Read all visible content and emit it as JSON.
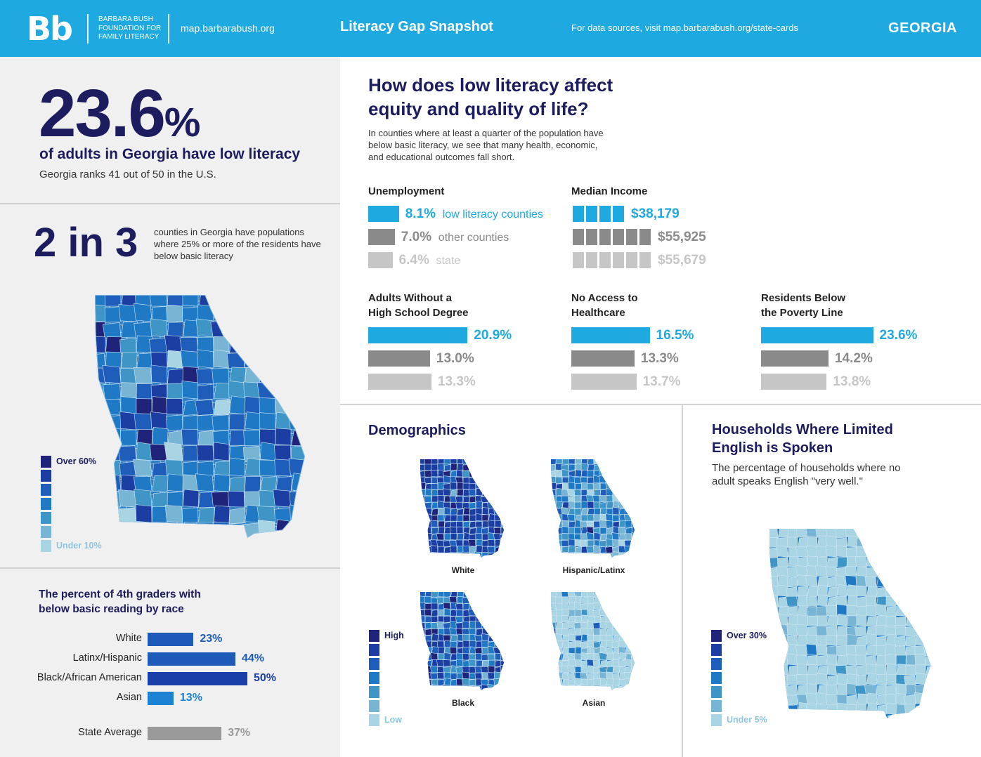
{
  "header": {
    "logo": "Bb",
    "org_lines": [
      "BARBARA BUSH",
      "FOUNDATION for",
      "FAMILY LITERACY"
    ],
    "site": "map.barbarabush.org",
    "title": "Literacy Gap Snapshot",
    "sources": "For data sources, visit map.barbarabush.org/state-cards",
    "state": "GEORGIA"
  },
  "hero": {
    "value": "23.6",
    "unit": "%",
    "subtitle": "of adults in Georgia have low literacy",
    "rank": "Georgia ranks 41 out of 50 in the U.S."
  },
  "counties": {
    "value": "2 in 3",
    "description": "counties in Georgia have populations where 25% or more of the residents have below basic literacy"
  },
  "map_legend": {
    "high": "Over 60%",
    "low": "Under 10%"
  },
  "race_chart": {
    "title_lines": [
      "The percent of 4th graders with",
      "below basic reading by race"
    ],
    "rows": [
      {
        "label": "White",
        "value": 23,
        "text": "23%",
        "color": "#1e5bb8"
      },
      {
        "label": "Latinx/Hispanic",
        "value": 44,
        "text": "44%",
        "color": "#1e5bb8"
      },
      {
        "label": "Black/African American",
        "value": 50,
        "text": "50%",
        "color": "#1b3fa8"
      },
      {
        "label": "Asian",
        "value": 13,
        "text": "13%",
        "color": "#1e82d2"
      }
    ],
    "average": {
      "label": "State Average",
      "value": 37,
      "text": "37%",
      "color": "#9a9a9a"
    }
  },
  "equity": {
    "title_lines": [
      "How does low literacy affect",
      "equity and quality of life?"
    ],
    "description": "In counties where at least a quarter of the population have below basic literacy, we see that many health, economic, and educational outcomes fall short.",
    "unemployment": {
      "title": "Unemployment",
      "rows": [
        {
          "value": 8.1,
          "text": "8.1%",
          "desc": "low literacy counties"
        },
        {
          "value": 7.0,
          "text": "7.0%",
          "desc": "other counties"
        },
        {
          "value": 6.4,
          "text": "6.4%",
          "desc": "state"
        }
      ]
    },
    "income": {
      "title": "Median Income",
      "rows": [
        {
          "value": 38179,
          "text": "$38,179",
          "blocks": 4
        },
        {
          "value": 55925,
          "text": "$55,925",
          "blocks": 6
        },
        {
          "value": 55679,
          "text": "$55,679",
          "blocks": 6
        }
      ]
    },
    "metrics": [
      {
        "title_lines": [
          "Adults Without a",
          "High School Degree"
        ],
        "rows": [
          {
            "value": 20.9,
            "text": "20.9%"
          },
          {
            "value": 13.0,
            "text": "13.0%"
          },
          {
            "value": 13.3,
            "text": "13.3%"
          }
        ]
      },
      {
        "title_lines": [
          "No Access to",
          "Healthcare"
        ],
        "rows": [
          {
            "value": 16.5,
            "text": "16.5%"
          },
          {
            "value": 13.3,
            "text": "13.3%"
          },
          {
            "value": 13.7,
            "text": "13.7%"
          }
        ]
      },
      {
        "title_lines": [
          "Residents Below",
          "the Poverty Line"
        ],
        "rows": [
          {
            "value": 23.6,
            "text": "23.6%"
          },
          {
            "value": 14.2,
            "text": "14.2%"
          },
          {
            "value": 13.8,
            "text": "13.8%"
          }
        ]
      }
    ]
  },
  "demographics": {
    "title": "Demographics",
    "maps": [
      "White",
      "Hispanic/Latinx",
      "Black",
      "Asian"
    ],
    "legend": {
      "high": "High",
      "low": "Low"
    }
  },
  "households": {
    "title_lines": [
      "Households Where Limited",
      "English is Spoken"
    ],
    "description": "The percentage of households where no adult speaks English \"very well.\"",
    "legend": {
      "high": "Over 30%",
      "low": "Under 5%"
    }
  },
  "colors": {
    "header": "#1fa9e1",
    "navy": "#1c1c5e",
    "highlight": "#1fa9e1",
    "other": "#8a8a8a",
    "state": "#c6c6c6",
    "scale": [
      "#1f237a",
      "#1c3ea3",
      "#1f5dbb",
      "#2079c4",
      "#3f95c6",
      "#78b4d3",
      "#a8d4e3"
    ]
  }
}
